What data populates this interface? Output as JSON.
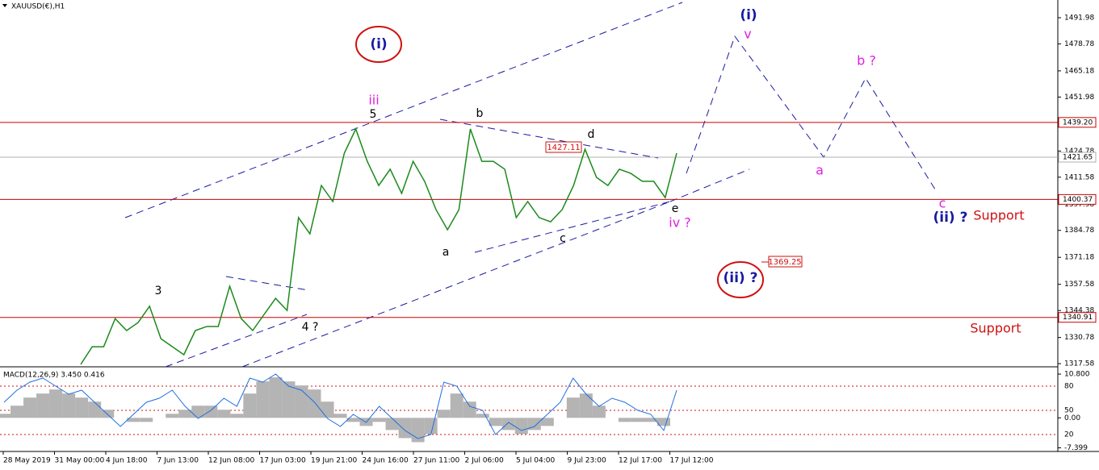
{
  "symbol": "XAUUSD(€),H1",
  "annotations": [
    "(i)",
    "(i)",
    "iii",
    "5",
    "b",
    "d",
    "1427.11",
    "a",
    "c",
    "e",
    "iv ?",
    "v",
    "a",
    "b ?",
    "c",
    "(ii) ?",
    "(ii) ?",
    "Support",
    "Support",
    "3",
    "4 ?",
    "1369.25"
  ],
  "chart_data": [
    {
      "type": "line",
      "color": "#1b8a1b",
      "values": [
        1317.2,
        1326.1,
        1326.1,
        1340.3,
        1334.3,
        1338.3,
        1346.5,
        1330.2,
        1326.1,
        1322.1,
        1334.3,
        1336.3,
        1336.3,
        1356.6,
        1340.3,
        1334.3,
        1342.4,
        1350.5,
        1344.4,
        1391.2,
        1383.0,
        1407.4,
        1399.3,
        1423.7,
        1435.9,
        1419.6,
        1407.4,
        1415.6,
        1403.4,
        1419.6,
        1409.5,
        1395.2,
        1385.1,
        1395.2,
        1435.9,
        1419.6,
        1419.6,
        1415.6,
        1391.2,
        1399.3,
        1391.2,
        1389.1,
        1395.2,
        1407.4,
        1425.7,
        1411.5,
        1407.4,
        1415.6,
        1413.5,
        1409.5,
        1409.5,
        1401.3,
        1423.7
      ],
      "ylim": [
        1316.0,
        1500.9
      ],
      "yticks": [
        1491.98,
        1478.78,
        1465.18,
        1451.98,
        1424.78,
        1411.58,
        1397.98,
        1384.78,
        1371.18,
        1357.58,
        1344.38,
        1330.78,
        1317.58
      ],
      "levels": [
        {
          "value": 1439.2,
          "label": "1439.20",
          "color": "#cc0000"
        },
        {
          "value": 1421.65,
          "label": "1421.65",
          "color": "#b0b0b0"
        },
        {
          "value": 1400.37,
          "label": "1400.37",
          "color": "#cc0000"
        },
        {
          "value": 1340.91,
          "label": "1340.91",
          "color": "#cc0000"
        }
      ],
      "x_labels": [
        "28 May 2019",
        "31 May 00:00",
        "4 Jun 18:00",
        "7 Jun 13:00",
        "12 Jun 08:00",
        "17 Jun 03:00",
        "19 Jun 21:00",
        "24 Jun 16:00",
        "27 Jun 11:00",
        "2 Jul 06:00",
        "5 Jul 04:00",
        "9 Jul 23:00",
        "12 Jul 17:00",
        "17 Jul 12:00"
      ]
    },
    {
      "type": "bar",
      "title": "MACD(12,26,9) 3.450 0.416",
      "color": "#b4b4b4",
      "values": [
        1,
        3,
        5,
        6,
        7,
        6,
        5,
        4,
        2,
        0,
        -1,
        -1,
        0,
        1,
        2,
        3,
        3,
        2,
        1,
        6,
        9,
        10,
        9,
        8,
        7,
        4,
        1,
        -1,
        -2,
        -1,
        -3,
        -5,
        -6,
        -4,
        2,
        6,
        4,
        1,
        -2,
        -3,
        -4,
        -3,
        -2,
        0,
        5,
        6,
        3,
        0,
        -1,
        -1,
        -1,
        -2,
        0
      ],
      "ylim": [
        -7.7,
        12.2
      ],
      "yticks": [
        {
          "value": 10.8,
          "label": "10.800"
        },
        {
          "value": 0,
          "label": "0.00"
        },
        -7.399
      ],
      "series": [
        {
          "color": "#1e6fe0",
          "axis": "y2",
          "values": [
            60,
            75,
            85,
            90,
            80,
            70,
            75,
            60,
            45,
            30,
            45,
            60,
            65,
            75,
            55,
            40,
            50,
            65,
            55,
            90,
            85,
            95,
            80,
            75,
            60,
            40,
            30,
            45,
            35,
            55,
            40,
            25,
            15,
            20,
            85,
            80,
            55,
            50,
            20,
            35,
            25,
            30,
            45,
            60,
            90,
            70,
            55,
            65,
            60,
            50,
            45,
            25,
            75
          ]
        }
      ],
      "y2lim": [
        2,
        102
      ],
      "y2ticks": [
        80,
        50,
        20
      ]
    }
  ]
}
